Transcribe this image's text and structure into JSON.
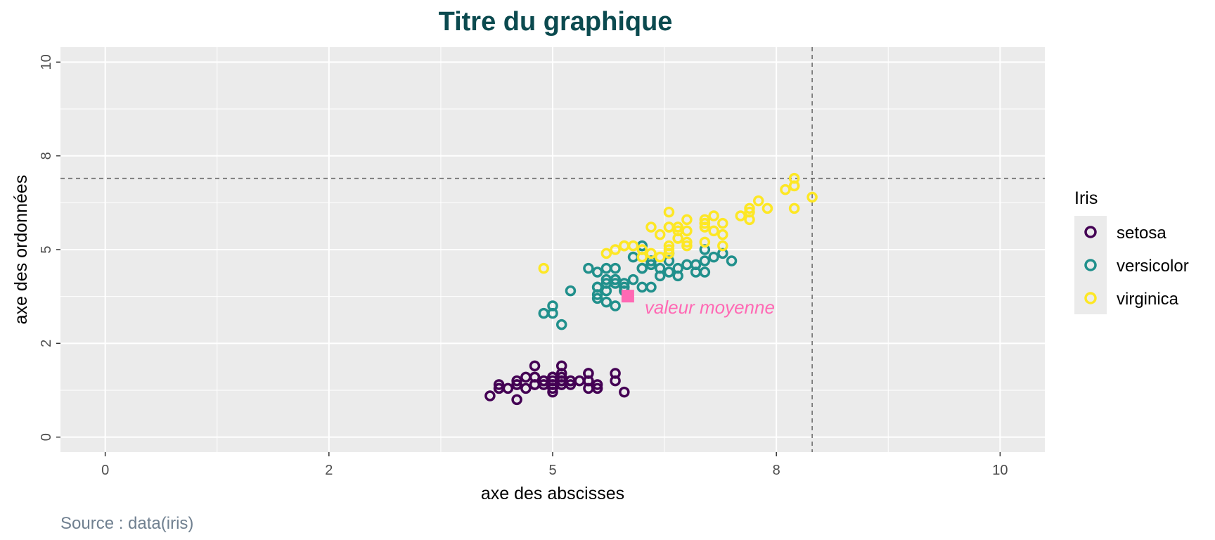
{
  "chart_data": {
    "type": "scatter",
    "title": "Titre du graphique",
    "xlabel": "axe des abscisses",
    "ylabel": "axe des ordonnées",
    "caption": "Source : data(iris)",
    "xlim": [
      -0.5,
      10.5
    ],
    "ylim": [
      -0.4,
      10.4
    ],
    "x_ticks": [
      {
        "value": 0,
        "label": "0"
      },
      {
        "value": 2.5,
        "label": "2"
      },
      {
        "value": 5,
        "label": "5"
      },
      {
        "value": 7.5,
        "label": "8"
      },
      {
        "value": 10,
        "label": "10"
      }
    ],
    "y_ticks": [
      {
        "value": 0,
        "label": "0"
      },
      {
        "value": 2.5,
        "label": "2"
      },
      {
        "value": 5,
        "label": "5"
      },
      {
        "value": 7.5,
        "label": "8"
      },
      {
        "value": 10,
        "label": "10"
      }
    ],
    "grid": true,
    "panel_color": "#EBEBEB",
    "legend": {
      "title": "Iris",
      "position": "right"
    },
    "reference_lines": {
      "vline_x": 7.9,
      "hline_y": 6.9,
      "color": "#666666",
      "style": "dashed"
    },
    "mean_point": {
      "x": 5.84,
      "y": 3.76,
      "label": "valeur moyenne",
      "color": "#FF69B4"
    },
    "series": [
      {
        "name": "setosa",
        "color": "#440154",
        "points": [
          [
            5.1,
            1.4
          ],
          [
            4.9,
            1.4
          ],
          [
            4.7,
            1.3
          ],
          [
            4.6,
            1.5
          ],
          [
            5.0,
            1.4
          ],
          [
            5.4,
            1.7
          ],
          [
            4.6,
            1.4
          ],
          [
            5.0,
            1.5
          ],
          [
            4.4,
            1.4
          ],
          [
            4.9,
            1.5
          ],
          [
            5.4,
            1.5
          ],
          [
            4.8,
            1.6
          ],
          [
            4.8,
            1.4
          ],
          [
            4.3,
            1.1
          ],
          [
            5.8,
            1.2
          ],
          [
            5.7,
            1.5
          ],
          [
            5.4,
            1.3
          ],
          [
            5.1,
            1.4
          ],
          [
            5.7,
            1.7
          ],
          [
            5.1,
            1.5
          ],
          [
            5.4,
            1.7
          ],
          [
            5.1,
            1.5
          ],
          [
            4.6,
            1.0
          ],
          [
            5.1,
            1.7
          ],
          [
            4.8,
            1.9
          ],
          [
            5.0,
            1.6
          ],
          [
            5.0,
            1.6
          ],
          [
            5.2,
            1.5
          ],
          [
            5.2,
            1.4
          ],
          [
            4.7,
            1.6
          ],
          [
            4.8,
            1.6
          ],
          [
            5.4,
            1.5
          ],
          [
            5.2,
            1.5
          ],
          [
            5.5,
            1.4
          ],
          [
            4.9,
            1.5
          ],
          [
            5.0,
            1.2
          ],
          [
            5.5,
            1.3
          ],
          [
            4.9,
            1.4
          ],
          [
            4.4,
            1.3
          ],
          [
            5.1,
            1.5
          ],
          [
            5.0,
            1.3
          ],
          [
            4.5,
            1.3
          ],
          [
            4.4,
            1.3
          ],
          [
            5.0,
            1.6
          ],
          [
            5.1,
            1.9
          ],
          [
            4.8,
            1.4
          ],
          [
            5.1,
            1.6
          ],
          [
            4.6,
            1.4
          ],
          [
            5.3,
            1.5
          ],
          [
            5.0,
            1.4
          ]
        ]
      },
      {
        "name": "versicolor",
        "color": "#21908C",
        "points": [
          [
            7.0,
            4.7
          ],
          [
            6.4,
            4.5
          ],
          [
            6.9,
            4.9
          ],
          [
            5.5,
            4.0
          ],
          [
            6.5,
            4.6
          ],
          [
            5.7,
            4.5
          ],
          [
            6.3,
            4.7
          ],
          [
            4.9,
            3.3
          ],
          [
            6.6,
            4.6
          ],
          [
            5.2,
            3.9
          ],
          [
            5.0,
            3.5
          ],
          [
            5.9,
            4.2
          ],
          [
            6.0,
            4.0
          ],
          [
            6.1,
            4.7
          ],
          [
            5.6,
            3.6
          ],
          [
            6.7,
            4.4
          ],
          [
            5.6,
            4.5
          ],
          [
            5.8,
            4.1
          ],
          [
            6.2,
            4.5
          ],
          [
            5.6,
            3.9
          ],
          [
            5.9,
            4.8
          ],
          [
            6.1,
            4.0
          ],
          [
            6.3,
            4.9
          ],
          [
            6.1,
            4.7
          ],
          [
            6.4,
            4.3
          ],
          [
            6.6,
            4.4
          ],
          [
            6.8,
            4.8
          ],
          [
            6.7,
            5.0
          ],
          [
            6.0,
            4.5
          ],
          [
            5.7,
            3.5
          ],
          [
            5.5,
            3.8
          ],
          [
            5.5,
            3.7
          ],
          [
            5.8,
            3.9
          ],
          [
            6.0,
            5.1
          ],
          [
            5.4,
            4.5
          ],
          [
            6.0,
            4.5
          ],
          [
            6.7,
            4.7
          ],
          [
            6.3,
            4.4
          ],
          [
            5.6,
            4.1
          ],
          [
            5.5,
            4.0
          ],
          [
            5.5,
            4.4
          ],
          [
            6.1,
            4.6
          ],
          [
            5.8,
            4.0
          ],
          [
            5.0,
            3.3
          ],
          [
            5.6,
            4.2
          ],
          [
            5.7,
            4.2
          ],
          [
            5.7,
            4.2
          ],
          [
            6.2,
            4.3
          ],
          [
            5.1,
            3.0
          ],
          [
            5.7,
            4.1
          ]
        ]
      },
      {
        "name": "virginica",
        "color": "#FDE725",
        "points": [
          [
            6.3,
            6.0
          ],
          [
            5.8,
            5.1
          ],
          [
            7.1,
            5.9
          ],
          [
            6.3,
            5.6
          ],
          [
            6.5,
            5.8
          ],
          [
            7.6,
            6.6
          ],
          [
            4.9,
            4.5
          ],
          [
            7.3,
            6.3
          ],
          [
            6.7,
            5.8
          ],
          [
            7.2,
            6.1
          ],
          [
            6.5,
            5.1
          ],
          [
            6.4,
            5.3
          ],
          [
            6.8,
            5.5
          ],
          [
            5.7,
            5.0
          ],
          [
            5.8,
            5.1
          ],
          [
            6.4,
            5.3
          ],
          [
            6.5,
            5.5
          ],
          [
            7.7,
            6.7
          ],
          [
            7.7,
            6.9
          ],
          [
            6.0,
            5.0
          ],
          [
            6.9,
            5.7
          ],
          [
            5.6,
            4.9
          ],
          [
            7.7,
            6.7
          ],
          [
            6.3,
            4.9
          ],
          [
            6.7,
            5.7
          ],
          [
            7.2,
            6.0
          ],
          [
            6.2,
            4.8
          ],
          [
            6.1,
            4.9
          ],
          [
            6.4,
            5.6
          ],
          [
            7.2,
            5.8
          ],
          [
            7.4,
            6.1
          ],
          [
            7.9,
            6.4
          ],
          [
            6.4,
            5.6
          ],
          [
            6.3,
            5.1
          ],
          [
            6.1,
            5.6
          ],
          [
            7.7,
            6.1
          ],
          [
            6.3,
            5.6
          ],
          [
            6.4,
            5.5
          ],
          [
            6.0,
            4.8
          ],
          [
            6.9,
            5.4
          ],
          [
            6.7,
            5.6
          ],
          [
            6.9,
            5.1
          ],
          [
            5.8,
            5.1
          ],
          [
            6.8,
            5.9
          ],
          [
            6.7,
            5.7
          ],
          [
            6.7,
            5.2
          ],
          [
            6.3,
            5.0
          ],
          [
            6.5,
            5.2
          ],
          [
            6.2,
            5.4
          ],
          [
            5.9,
            5.1
          ]
        ]
      }
    ]
  }
}
